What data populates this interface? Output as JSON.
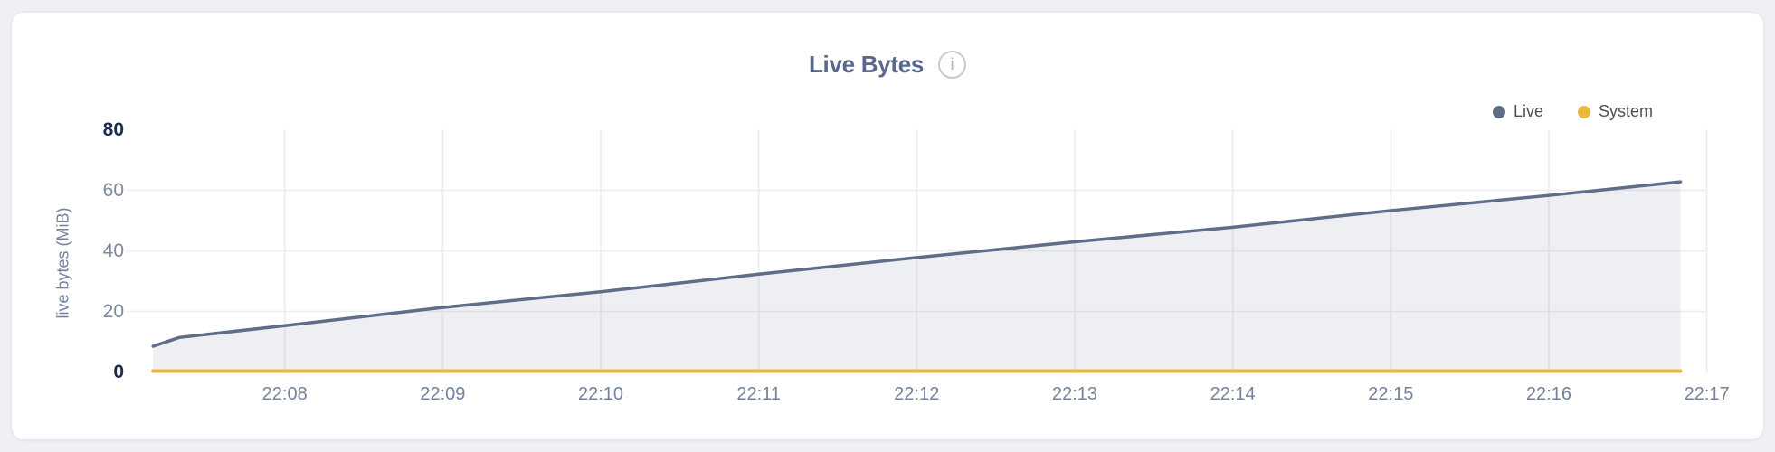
{
  "header": {
    "title": "Live Bytes",
    "info_icon_glyph": "i"
  },
  "chart_data": {
    "type": "area",
    "title": "Live Bytes",
    "xlabel": "",
    "ylabel": "live bytes (MiB)",
    "ylim": [
      0,
      80
    ],
    "xlim_minutes_past_2200": [
      7.167,
      17.0
    ],
    "grid": "on",
    "legend_position": "top-right",
    "x_unit": "time (HH:MM)",
    "x_ticks": [
      {
        "v": 8,
        "label": "22:08"
      },
      {
        "v": 9,
        "label": "22:09"
      },
      {
        "v": 10,
        "label": "22:10"
      },
      {
        "v": 11,
        "label": "22:11"
      },
      {
        "v": 12,
        "label": "22:12"
      },
      {
        "v": 13,
        "label": "22:13"
      },
      {
        "v": 14,
        "label": "22:14"
      },
      {
        "v": 15,
        "label": "22:15"
      },
      {
        "v": 16,
        "label": "22:16"
      },
      {
        "v": 17,
        "label": "22:17"
      }
    ],
    "y_ticks": [
      {
        "v": 0,
        "label": "0",
        "major": true
      },
      {
        "v": 20,
        "label": "20"
      },
      {
        "v": 40,
        "label": "40"
      },
      {
        "v": 60,
        "label": "60"
      },
      {
        "v": 80,
        "label": "80",
        "major": true
      }
    ],
    "series": [
      {
        "name": "Live",
        "color": "#5f6d89",
        "fill": "rgba(99,112,140,0.11)",
        "line_width": 3.5,
        "x": [
          7.167,
          7.333,
          8.0,
          9.0,
          10.0,
          11.0,
          12.0,
          13.0,
          14.0,
          15.0,
          16.0,
          16.833
        ],
        "values": [
          8.5,
          11.4,
          15.3,
          21.3,
          26.5,
          32.3,
          37.8,
          43.0,
          47.8,
          53.3,
          58.3,
          62.8
        ]
      },
      {
        "name": "System",
        "color": "#e9b93f",
        "fill": null,
        "line_width": 4,
        "x": [
          7.167,
          16.833
        ],
        "values": [
          0.3,
          0.3
        ]
      }
    ],
    "style": {
      "grid_color_vertical": "#e9ebee",
      "grid_color_horizontal": "#edeef1",
      "y_tick_major_color": "#1c2c4e",
      "y_tick_minor_color": "#7c89a0",
      "x_tick_color": "#74829c"
    }
  }
}
